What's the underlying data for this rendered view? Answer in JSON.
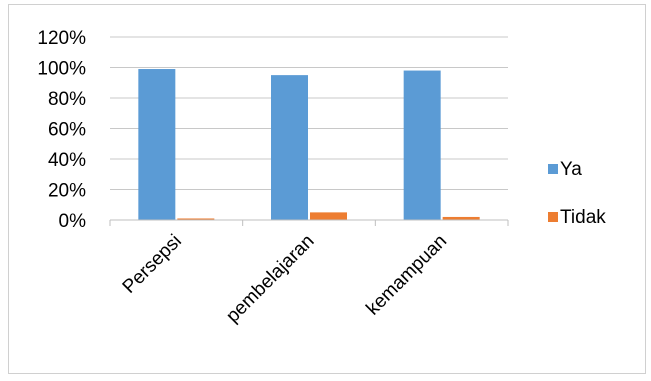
{
  "chart_data": {
    "type": "bar",
    "title": "",
    "xlabel": "",
    "ylabel": "",
    "categories": [
      "Persepsi",
      "pembelajaran",
      "kemampuan"
    ],
    "series": [
      {
        "name": "Ya",
        "values": [
          0.99,
          0.95,
          0.98
        ],
        "color": "#5b9bd5"
      },
      {
        "name": "Tidak",
        "values": [
          0.01,
          0.05,
          0.02
        ],
        "color": "#ed7d31"
      }
    ],
    "ylim": [
      0,
      1.2
    ],
    "yticks": [
      "0%",
      "20%",
      "40%",
      "60%",
      "80%",
      "100%",
      "120%"
    ],
    "grid": true,
    "legend_position": "right"
  }
}
